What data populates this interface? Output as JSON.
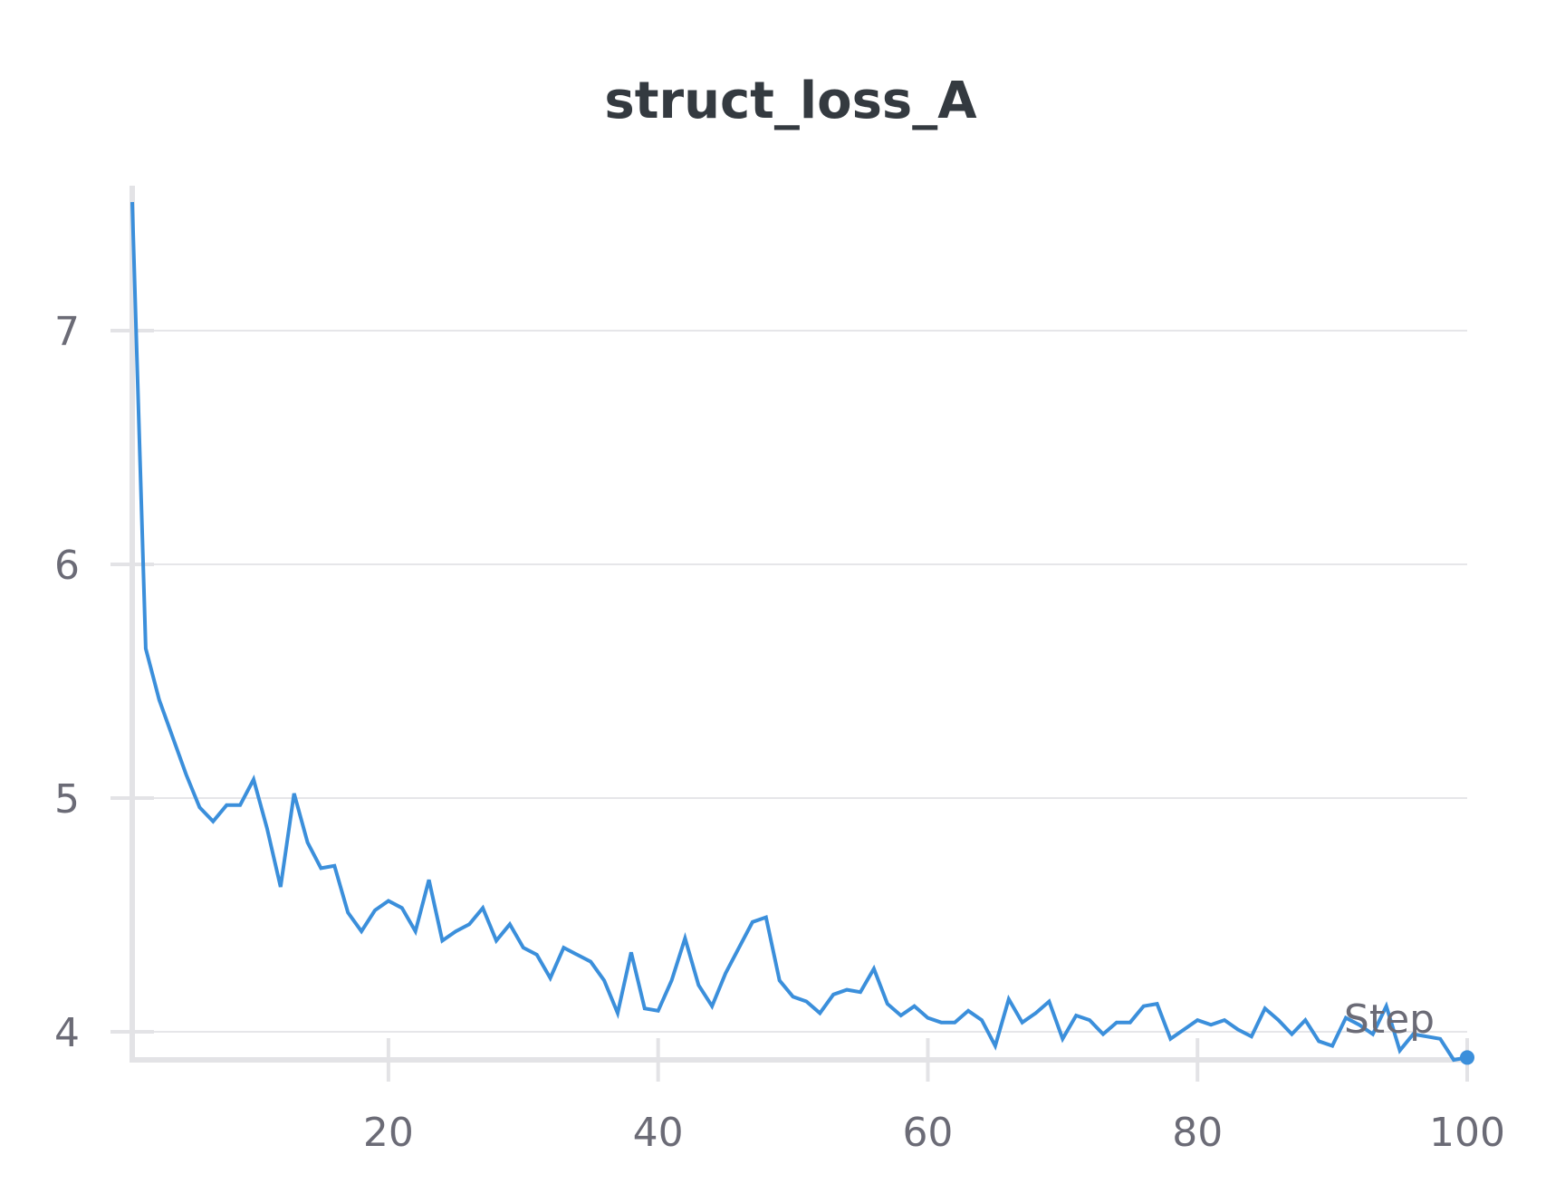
{
  "chart_data": {
    "type": "line",
    "title": "struct_loss_A",
    "xlabel": "Step",
    "ylabel": "",
    "xlim": [
      1,
      100
    ],
    "ylim": [
      3.88,
      7.62
    ],
    "x_ticks": [
      20,
      40,
      60,
      80,
      100
    ],
    "y_ticks": [
      4,
      5,
      6,
      7
    ],
    "grid": "horizontal",
    "legend": "none",
    "colors": {
      "series": "#3b8fdb",
      "grid": "#e6e6e9",
      "axis": "#e3e3e6",
      "text": "#6b6b76",
      "title": "#343a40"
    },
    "series": [
      {
        "x": [
          1,
          2,
          3,
          4,
          5,
          6,
          7,
          8,
          9,
          10,
          11,
          12,
          13,
          14,
          15,
          16,
          17,
          18,
          19,
          20,
          21,
          22,
          23,
          24,
          25,
          26,
          27,
          28,
          29,
          30,
          31,
          32,
          33,
          34,
          35,
          36,
          37,
          38,
          39,
          40,
          41,
          42,
          43,
          44,
          45,
          46,
          47,
          48,
          49,
          50,
          51,
          52,
          53,
          54,
          55,
          56,
          57,
          58,
          59,
          60,
          61,
          62,
          63,
          64,
          65,
          66,
          67,
          68,
          69,
          70,
          71,
          72,
          73,
          74,
          75,
          76,
          77,
          78,
          79,
          80,
          81,
          82,
          83,
          84,
          85,
          86,
          87,
          88,
          89,
          90,
          91,
          92,
          93,
          94,
          95,
          96,
          97,
          98,
          99,
          100
        ],
        "y": [
          7.55,
          5.64,
          5.42,
          5.26,
          5.1,
          4.96,
          4.9,
          4.97,
          4.97,
          5.08,
          4.87,
          4.62,
          5.02,
          4.81,
          4.7,
          4.71,
          4.51,
          4.43,
          4.52,
          4.56,
          4.53,
          4.43,
          4.65,
          4.39,
          4.43,
          4.46,
          4.53,
          4.39,
          4.46,
          4.36,
          4.33,
          4.23,
          4.36,
          4.33,
          4.3,
          4.22,
          4.08,
          4.34,
          4.1,
          4.09,
          4.22,
          4.4,
          4.2,
          4.11,
          4.25,
          4.36,
          4.47,
          4.49,
          4.22,
          4.15,
          4.13,
          4.08,
          4.16,
          4.18,
          4.17,
          4.27,
          4.12,
          4.07,
          4.11,
          4.06,
          4.04,
          4.04,
          4.09,
          4.05,
          3.94,
          4.14,
          4.04,
          4.08,
          4.13,
          3.97,
          4.07,
          4.05,
          3.99,
          4.04,
          4.04,
          4.11,
          4.12,
          3.97,
          4.01,
          4.05,
          4.03,
          4.05,
          4.01,
          3.98,
          4.1,
          4.05,
          3.99,
          4.05,
          3.96,
          3.94,
          4.06,
          4.03,
          3.99,
          4.11,
          3.92,
          3.99,
          3.98,
          3.97,
          3.88,
          3.89
        ]
      }
    ]
  }
}
